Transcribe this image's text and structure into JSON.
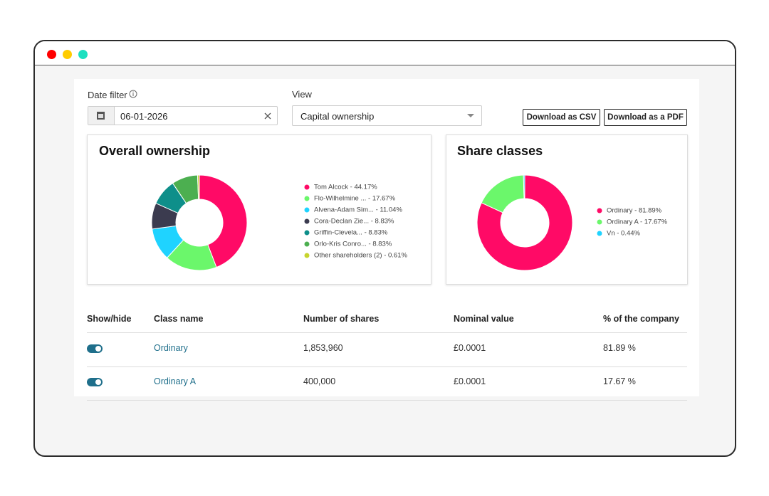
{
  "filters": {
    "date_label": "Date filter",
    "date_value": "06-01-2026",
    "view_label": "View",
    "view_value": "Capital ownership"
  },
  "buttons": [
    "Download as CSV",
    "Download as a PDF"
  ],
  "chart_data": [
    {
      "type": "pie",
      "donut": true,
      "title": "Overall ownership",
      "categories": [
        "Tom Alcock - 44.17%",
        "Flo-Wilhelmine ... - 17.67%",
        "Alvena-Adam Sim... - 11.04%",
        "Cora-Declan Zie... - 8.83%",
        "Griffin-Clevela... - 8.83%",
        "Orlo-Kris Conro... - 8.83%",
        "Other shareholders (2) - 0.61%"
      ],
      "values": [
        44.17,
        17.67,
        11.04,
        8.83,
        8.83,
        8.83,
        0.61
      ],
      "colors": [
        "#ff0a66",
        "#6bf76b",
        "#1fd3ff",
        "#3b3b4f",
        "#0e8f8a",
        "#4caf50",
        "#c7d42e"
      ]
    },
    {
      "type": "pie",
      "donut": true,
      "title": "Share classes",
      "categories": [
        "Ordinary - 81.89%",
        "Ordinary A - 17.67%",
        "Vn - 0.44%"
      ],
      "values": [
        81.89,
        17.67,
        0.44
      ],
      "colors": [
        "#ff0a66",
        "#6bf76b",
        "#1fd3ff"
      ]
    }
  ],
  "table": {
    "headers": [
      "Show/hide",
      "Class name",
      "Number of shares",
      "Nominal value",
      "% of the company"
    ],
    "rows": [
      [
        "Ordinary",
        "1,853,960",
        "£0.0001",
        "81.89 %"
      ],
      [
        "Ordinary A",
        "400,000",
        "£0.0001",
        "17.67 %"
      ]
    ]
  }
}
